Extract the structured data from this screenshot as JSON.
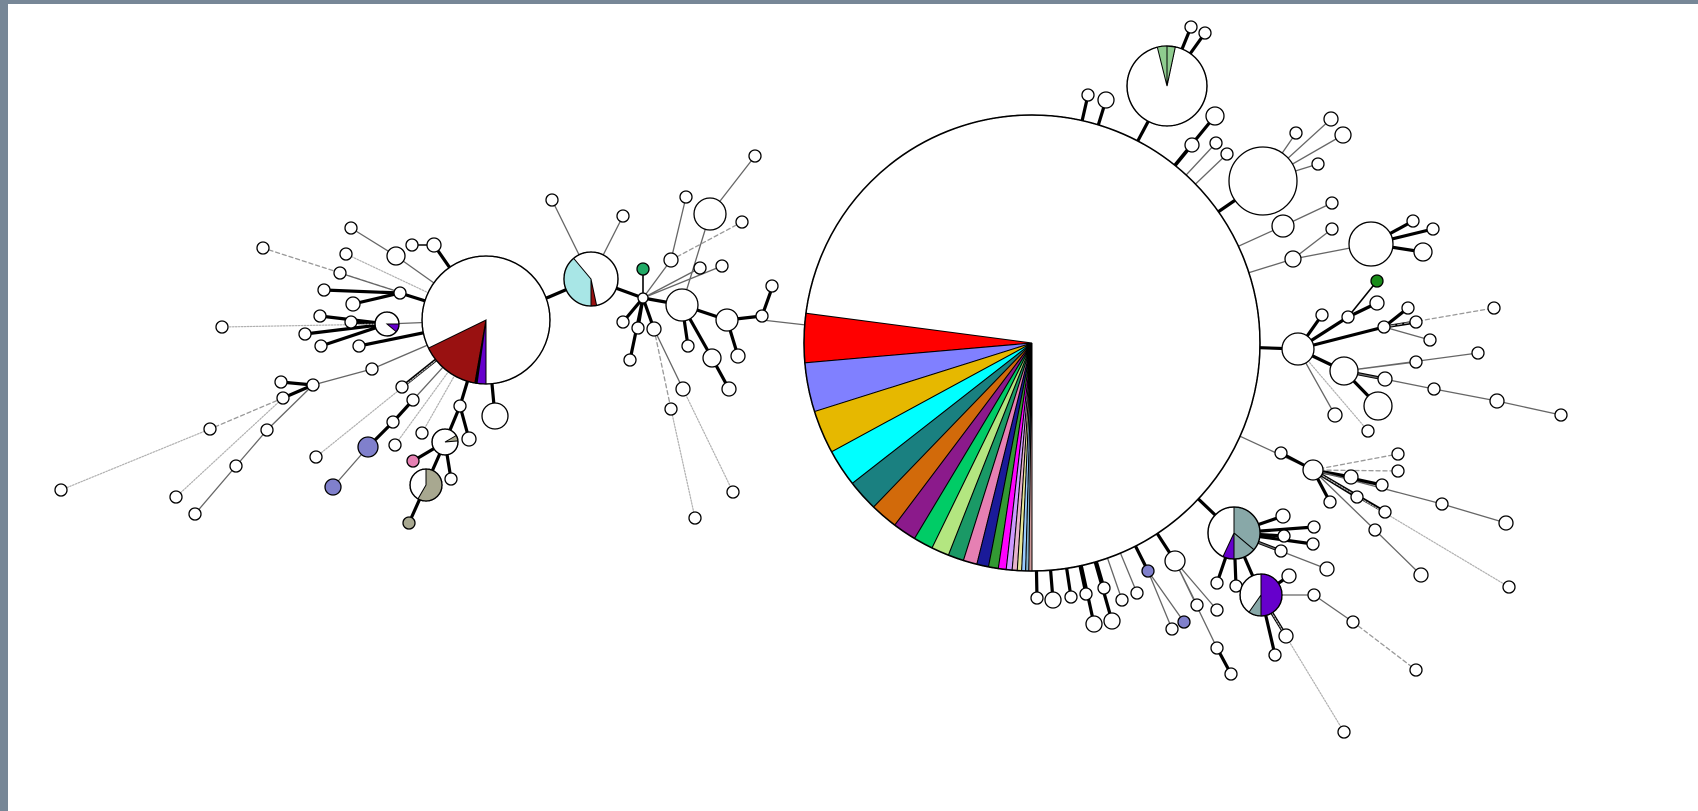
{
  "diagram": {
    "type": "minimum-spanning-tree",
    "colors": {
      "background": "#ffffff",
      "border": "#778797",
      "node_fill": "#ffffff",
      "node_stroke": "#000000",
      "edge_thick": "#000000",
      "edge_thin": "#666666",
      "edge_dashed": "#999999"
    },
    "pie_palette": [
      "#ff0000",
      "#8080ff",
      "#e6b800",
      "#00ffff",
      "#1a8080",
      "#d26a0a",
      "#8b1a8b",
      "#00cc66",
      "#b3e680",
      "#1a9966",
      "#e680b3",
      "#1a1a99",
      "#339933",
      "#ff00ff",
      "#cc99ff",
      "#e6b3cc",
      "#e6e699",
      "#99ccff",
      "#80b3cc",
      "#cc9999",
      "#999999"
    ],
    "other_fills": {
      "dark_red": "#991111",
      "purple": "#6600cc",
      "light_cyan": "#a8e6e6",
      "light_green": "#8fcc8f",
      "green": "#1a8c1a",
      "slate": "#88a8a8",
      "lavender": "#8080cc",
      "pink": "#e680b3",
      "khaki": "#a8a890",
      "medium_green": "#22aa66"
    }
  }
}
